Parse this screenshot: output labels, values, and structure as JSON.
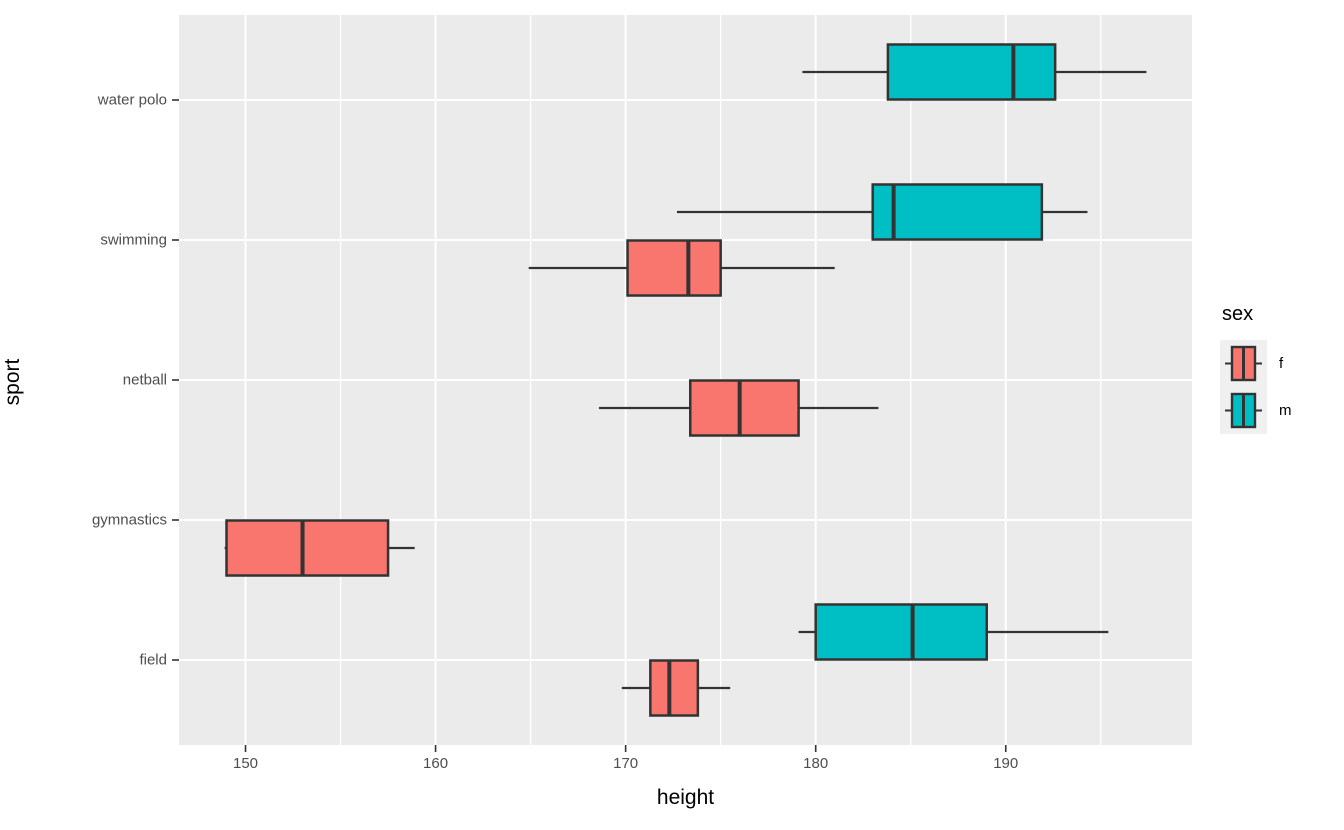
{
  "chart_data": {
    "type": "boxplot",
    "orientation": "horizontal",
    "title": "",
    "xlabel": "height",
    "ylabel": "sport",
    "xlim": [
      146.5,
      199.8
    ],
    "x_major_ticks": [
      150,
      160,
      170,
      180,
      190
    ],
    "x_minor_ticks": [
      155,
      165,
      175,
      185,
      195
    ],
    "categories": [
      "water polo",
      "swimming",
      "netball",
      "gymnastics",
      "field"
    ],
    "grid": true,
    "legend": {
      "title": "sex",
      "position": "right",
      "items": [
        {
          "label": "f",
          "color": "#F8766D"
        },
        {
          "label": "m",
          "color": "#00BFC4"
        }
      ]
    },
    "series": [
      {
        "sport": "water polo",
        "sex": "m",
        "whisker_lo": 179.3,
        "q1": 183.8,
        "median": 190.4,
        "q3": 192.6,
        "whisker_hi": 197.4
      },
      {
        "sport": "swimming",
        "sex": "m",
        "whisker_lo": 172.7,
        "q1": 183.0,
        "median": 184.1,
        "q3": 191.9,
        "whisker_hi": 194.3
      },
      {
        "sport": "swimming",
        "sex": "f",
        "whisker_lo": 164.9,
        "q1": 170.1,
        "median": 173.3,
        "q3": 175.0,
        "whisker_hi": 181.0
      },
      {
        "sport": "netball",
        "sex": "f",
        "whisker_lo": 168.6,
        "q1": 173.4,
        "median": 176.0,
        "q3": 179.1,
        "whisker_hi": 183.3
      },
      {
        "sport": "gymnastics",
        "sex": "f",
        "whisker_lo": 148.9,
        "q1": 149.0,
        "median": 153.0,
        "q3": 157.5,
        "whisker_hi": 158.9
      },
      {
        "sport": "field",
        "sex": "m",
        "whisker_lo": 179.1,
        "q1": 180.0,
        "median": 185.1,
        "q3": 189.0,
        "whisker_hi": 195.4
      },
      {
        "sport": "field",
        "sex": "f",
        "whisker_lo": 169.8,
        "q1": 171.3,
        "median": 172.3,
        "q3": 173.8,
        "whisker_hi": 175.5
      }
    ],
    "colors": {
      "fill_f": "#F8766D",
      "fill_m": "#00BFC4",
      "box_stroke": "#333333",
      "panel_bg": "#EBEBEB",
      "grid_line": "#FFFFFF",
      "axis_text": "#4D4D4D",
      "axis_title": "#000000",
      "legend_key_bg": "#F0F0F0"
    }
  }
}
